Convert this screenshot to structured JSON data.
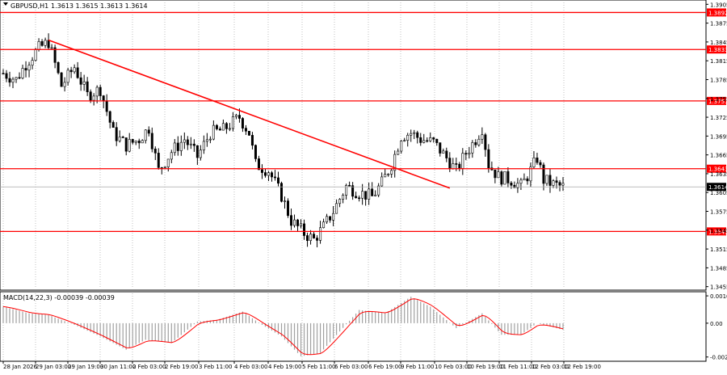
{
  "header": {
    "symbol_label": "GBPUSD,H1",
    "ohlc_label": "1.3613 1.3615 1.3613 1.3614"
  },
  "macd_header": "MACD(14,22,3) -0.00039 -0.00039",
  "colors": {
    "candle": "#000000",
    "level_line": "#ff0000",
    "trendline": "#ff0000",
    "macd_hist": "#a0a0a0",
    "signal": "#ff0000",
    "grid": "#c0c0c0",
    "price_tag_bg": "#ff0000",
    "current_tag_bg": "#000000"
  },
  "chart_data": [
    {
      "type": "candlestick",
      "title": "GBPUSD,H1",
      "ylim": [
        1.3452,
        1.3908
      ],
      "y_ticks": [
        "1.3905",
        "1.3875",
        "1.3845",
        "1.3815",
        "1.3785",
        "1.3755",
        "1.3725",
        "1.3695",
        "1.3665",
        "1.3635",
        "1.3605",
        "1.3575",
        "1.3545",
        "1.3515",
        "1.3485",
        "1.3455"
      ],
      "x_ticks": [
        "28 Jan 2026",
        "29 Jan 03:00",
        "29 Jan 19:00",
        "30 Jan 11:00",
        "2 Feb 03:00",
        "2 Feb 19:00",
        "3 Feb 11:00",
        "4 Feb 03:00",
        "4 Feb 19:00",
        "5 Feb 11:00",
        "6 Feb 03:00",
        "6 Feb 19:00",
        "9 Feb 11:00",
        "10 Feb 03:00",
        "10 Feb 19:00",
        "11 Feb 11:00",
        "12 Feb 03:00",
        "12 Feb 19:00"
      ],
      "horizontal_levels": [
        {
          "value": 1.3892,
          "label": "1.3892"
        },
        {
          "value": 1.3833,
          "label": "1.3833"
        },
        {
          "value": 1.3751,
          "label": "1.3751"
        },
        {
          "value": 1.3643,
          "label": "1.3643"
        },
        {
          "value": 1.3543,
          "label": "1.3543"
        }
      ],
      "current_price": {
        "value": 1.3614,
        "label": "1.3614"
      },
      "trendline": {
        "start": {
          "bar": 14,
          "price": 1.3848
        },
        "end": {
          "bar": 138,
          "price": 1.3612
        }
      },
      "anchors": [
        {
          "bar": 0,
          "price": 1.3795
        },
        {
          "bar": 4,
          "price": 1.3785
        },
        {
          "bar": 7,
          "price": 1.381
        },
        {
          "bar": 11,
          "price": 1.3835
        },
        {
          "bar": 14,
          "price": 1.3845
        },
        {
          "bar": 18,
          "price": 1.3775
        },
        {
          "bar": 22,
          "price": 1.3805
        },
        {
          "bar": 26,
          "price": 1.376
        },
        {
          "bar": 30,
          "price": 1.377
        },
        {
          "bar": 34,
          "price": 1.37
        },
        {
          "bar": 38,
          "price": 1.368
        },
        {
          "bar": 42,
          "price": 1.369
        },
        {
          "bar": 45,
          "price": 1.3708
        },
        {
          "bar": 48,
          "price": 1.364
        },
        {
          "bar": 52,
          "price": 1.367
        },
        {
          "bar": 56,
          "price": 1.369
        },
        {
          "bar": 60,
          "price": 1.3662
        },
        {
          "bar": 64,
          "price": 1.37
        },
        {
          "bar": 68,
          "price": 1.3705
        },
        {
          "bar": 73,
          "price": 1.3725
        },
        {
          "bar": 76,
          "price": 1.37
        },
        {
          "bar": 78,
          "price": 1.365
        },
        {
          "bar": 82,
          "price": 1.364
        },
        {
          "bar": 86,
          "price": 1.36
        },
        {
          "bar": 89,
          "price": 1.356
        },
        {
          "bar": 93,
          "price": 1.354
        },
        {
          "bar": 96,
          "price": 1.353
        },
        {
          "bar": 99,
          "price": 1.355
        },
        {
          "bar": 102,
          "price": 1.3575
        },
        {
          "bar": 106,
          "price": 1.3615
        },
        {
          "bar": 110,
          "price": 1.3605
        },
        {
          "bar": 114,
          "price": 1.3598
        },
        {
          "bar": 117,
          "price": 1.362
        },
        {
          "bar": 120,
          "price": 1.365
        },
        {
          "bar": 123,
          "price": 1.3695
        },
        {
          "bar": 126,
          "price": 1.37
        },
        {
          "bar": 129,
          "price": 1.369
        },
        {
          "bar": 133,
          "price": 1.3685
        },
        {
          "bar": 137,
          "price": 1.366
        },
        {
          "bar": 140,
          "price": 1.364
        },
        {
          "bar": 143,
          "price": 1.3668
        },
        {
          "bar": 146,
          "price": 1.369
        },
        {
          "bar": 148,
          "price": 1.3708
        },
        {
          "bar": 150,
          "price": 1.365
        },
        {
          "bar": 153,
          "price": 1.363
        },
        {
          "bar": 157,
          "price": 1.3625
        },
        {
          "bar": 160,
          "price": 1.3615
        },
        {
          "bar": 163,
          "price": 1.364
        },
        {
          "bar": 165,
          "price": 1.366
        },
        {
          "bar": 167,
          "price": 1.3625
        },
        {
          "bar": 170,
          "price": 1.3618
        },
        {
          "bar": 173,
          "price": 1.3614
        }
      ]
    },
    {
      "type": "bar",
      "title": "MACD(14,22,3) -0.00039 -0.00039",
      "ylim": [
        -0.0022,
        0.0018
      ],
      "y_ticks": [
        "0.00165",
        "0.00",
        "-0.00204"
      ],
      "anchors": [
        {
          "bar": 0,
          "value": 0.001
        },
        {
          "bar": 8,
          "value": 0.0006
        },
        {
          "bar": 14,
          "value": 0.0005
        },
        {
          "bar": 22,
          "value": -0.0001
        },
        {
          "bar": 30,
          "value": -0.0008
        },
        {
          "bar": 38,
          "value": -0.0016
        },
        {
          "bar": 44,
          "value": -0.001
        },
        {
          "bar": 52,
          "value": -0.0012
        },
        {
          "bar": 60,
          "value": 0.0001
        },
        {
          "bar": 66,
          "value": 0.0002
        },
        {
          "bar": 74,
          "value": 0.0007
        },
        {
          "bar": 80,
          "value": -0.0001
        },
        {
          "bar": 86,
          "value": -0.0008
        },
        {
          "bar": 92,
          "value": -0.002
        },
        {
          "bar": 98,
          "value": -0.0018
        },
        {
          "bar": 104,
          "value": -0.0005
        },
        {
          "bar": 110,
          "value": 0.0008
        },
        {
          "bar": 118,
          "value": 0.0006
        },
        {
          "bar": 126,
          "value": 0.0016
        },
        {
          "bar": 132,
          "value": 0.001
        },
        {
          "bar": 140,
          "value": -0.0003
        },
        {
          "bar": 148,
          "value": 0.0006
        },
        {
          "bar": 154,
          "value": -0.0007
        },
        {
          "bar": 160,
          "value": -0.0007
        },
        {
          "bar": 165,
          "value": 0.0
        },
        {
          "bar": 173,
          "value": -0.0004
        }
      ]
    }
  ]
}
